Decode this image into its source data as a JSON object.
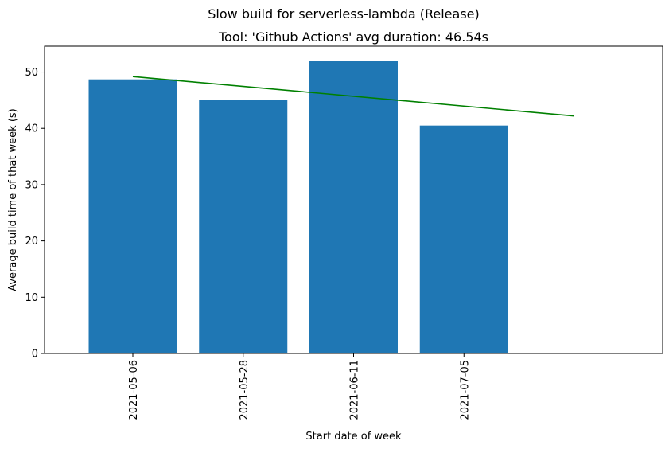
{
  "chart_data": {
    "type": "bar",
    "suptitle": "Slow build for serverless-lambda (Release)",
    "title": "Tool: 'Github Actions' avg duration: 46.54s",
    "xlabel": "Start date of week",
    "ylabel": "Average build time of that week (s)",
    "categories": [
      "2021-05-06",
      "2021-05-28",
      "2021-06-11",
      "2021-07-05"
    ],
    "values": [
      48.7,
      45.0,
      52.0,
      40.5
    ],
    "ylim": [
      0,
      54.6
    ],
    "yticks": [
      0,
      10,
      20,
      30,
      40,
      50
    ],
    "xlim": [
      -0.8,
      4.8
    ],
    "bar_color": "#1f77b4",
    "trend_line": {
      "x": [
        0,
        4
      ],
      "y": [
        49.2,
        42.2
      ],
      "color": "#008000"
    },
    "grid": false,
    "legend": "none"
  }
}
